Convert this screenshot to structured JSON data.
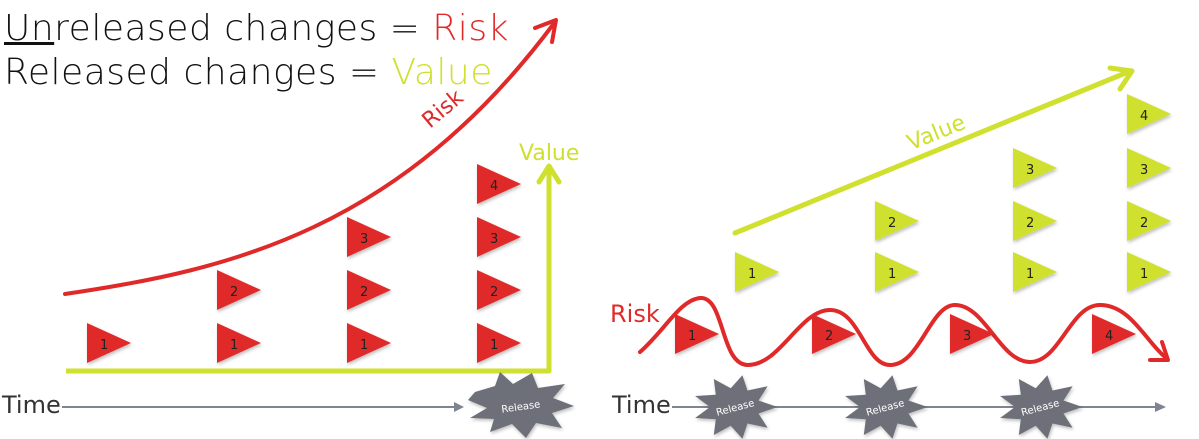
{
  "heading": {
    "line1": {
      "prefix_underlined": "Un",
      "text": "released changes = ",
      "accent": "Risk"
    },
    "line2": {
      "text": "Released changes = ",
      "accent": "Value"
    }
  },
  "colors": {
    "risk": "#e02a2a",
    "value": "#cfe02e",
    "axis": "#7f8590",
    "burst": "#6d7079",
    "text": "#111111"
  },
  "left_panel": {
    "risk_label": "Risk",
    "value_label": "Value",
    "time_label": "Time",
    "release_label": "Release",
    "stacks": [
      {
        "flags": [
          "1"
        ]
      },
      {
        "flags": [
          "1",
          "2"
        ]
      },
      {
        "flags": [
          "1",
          "2",
          "3"
        ]
      },
      {
        "flags": [
          "1",
          "2",
          "3",
          "4"
        ]
      }
    ]
  },
  "right_panel": {
    "risk_label": "Risk",
    "value_label": "Value",
    "time_label": "Time",
    "release_label": "Release",
    "value_stacks": [
      {
        "flags": [
          "1"
        ]
      },
      {
        "flags": [
          "1",
          "2"
        ]
      },
      {
        "flags": [
          "1",
          "2",
          "3"
        ]
      },
      {
        "flags": [
          "1",
          "2",
          "3",
          "4"
        ]
      }
    ],
    "risk_flags": [
      "1",
      "2",
      "3",
      "4"
    ],
    "releases": [
      "Release",
      "Release",
      "Release"
    ]
  }
}
